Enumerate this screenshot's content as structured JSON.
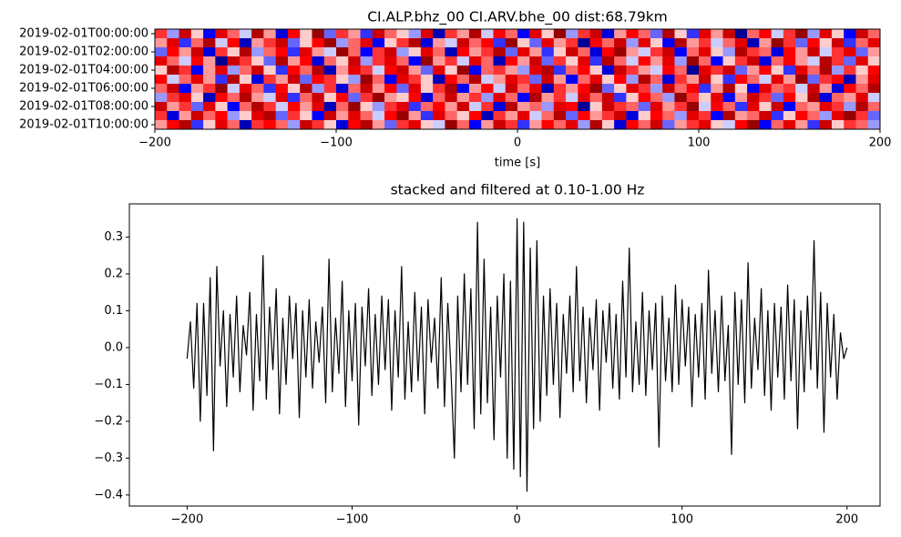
{
  "chart_data": [
    {
      "type": "heatmap",
      "title": "CI.ALP.bhz_00 CI.ARV.bhe_00  dist:68.79km",
      "x_label": "time [s]",
      "colormap": "seismic",
      "clim": [
        -1,
        1
      ],
      "xlim": [
        -200,
        200
      ],
      "xticks": [
        {
          "value": -200,
          "label": "−200"
        },
        {
          "value": -100,
          "label": "−100"
        },
        0,
        100,
        200
      ],
      "categories": [
        "2019-02-01T00:00:00",
        null,
        "2019-02-01T02:00:00",
        null,
        "2019-02-01T04:00:00",
        null,
        "2019-02-01T06:00:00",
        null,
        "2019-02-01T08:00:00",
        null,
        "2019-02-01T10:00:00"
      ],
      "values": [
        [
          0.4,
          -0.2,
          0.7,
          0.1,
          -0.5,
          0.6,
          0.3,
          -0.1,
          0.8,
          0.2,
          -0.6,
          0.5,
          0.1,
          0.9,
          -0.3,
          0.4,
          0.2,
          -0.4,
          0.7,
          0.3,
          0.1,
          -0.2,
          0.6,
          -0.7,
          0.4,
          0.2,
          0.8,
          -0.1,
          0.5,
          0.3,
          -0.5,
          0.6,
          0.1,
          0.9,
          -0.2,
          0.4,
          0.7,
          -0.6,
          0.2,
          0.5,
          0.3,
          -0.3,
          0.8,
          0.1,
          -0.4,
          0.6,
          0.2,
          0.7,
          -0.8,
          0.3,
          0.5,
          -0.1,
          0.4,
          0.9,
          -0.2,
          0.6,
          0.1,
          -0.5,
          0.7,
          0.3
        ],
        [
          0.2,
          0.6,
          -0.4,
          0.3,
          0.8,
          -0.1,
          0.5,
          -0.7,
          0.2,
          0.4,
          0.7,
          -0.3,
          0.1,
          0.5,
          0.9,
          -0.2,
          0.3,
          0.6,
          -0.5,
          0.1,
          0.4,
          0.8,
          -0.6,
          0.2,
          -0.1,
          0.7,
          0.3,
          0.5,
          -0.4,
          0.9,
          0.1,
          -0.3,
          0.6,
          0.2,
          0.4,
          -0.8,
          0.5,
          0.3,
          0.7,
          -0.2,
          0.6,
          0.1,
          -0.5,
          0.8,
          0.2,
          0.4,
          -0.1,
          0.3,
          0.6,
          -0.7,
          0.2,
          0.9,
          0.4,
          -0.3,
          0.5,
          0.1,
          0.7,
          -0.4,
          0.3,
          0.6
        ],
        [
          -0.3,
          0.5,
          0.2,
          0.7,
          -0.6,
          0.4,
          0.1,
          0.8,
          -0.2,
          0.3,
          0.5,
          -0.4,
          0.6,
          0.2,
          -0.1,
          0.9,
          0.3,
          -0.5,
          0.4,
          0.7,
          -0.2,
          0.1,
          0.6,
          0.3,
          -0.7,
          0.5,
          0.2,
          0.4,
          0.8,
          -0.3,
          0.6,
          0.2,
          -0.4,
          0.1,
          0.7,
          0.3,
          -0.6,
          0.5,
          0.9,
          0.2,
          -0.1,
          0.4,
          0.7,
          -0.5,
          0.3,
          0.6,
          0.1,
          -0.2,
          0.8,
          0.4,
          0.3,
          -0.6,
          0.5,
          0.2,
          0.7,
          -0.1,
          0.4,
          0.6,
          -0.3,
          0.2
        ],
        [
          0.6,
          0.3,
          -0.1,
          0.5,
          0.2,
          -0.8,
          0.7,
          0.4,
          0.1,
          -0.3,
          0.8,
          0.2,
          0.5,
          -0.6,
          0.3,
          0.1,
          0.7,
          -0.2,
          0.4,
          0.6,
          0.3,
          -0.5,
          0.9,
          0.2,
          0.4,
          -0.1,
          0.6,
          0.3,
          -0.7,
          0.5,
          0.2,
          0.7,
          -0.3,
          0.4,
          0.1,
          0.6,
          -0.4,
          0.8,
          0.3,
          -0.1,
          0.5,
          0.2,
          0.6,
          -0.2,
          0.9,
          0.3,
          -0.5,
          0.1,
          0.4,
          0.7,
          -0.6,
          0.3,
          0.5,
          0.2,
          -0.1,
          0.8,
          0.4,
          -0.3,
          0.6,
          0.1
        ],
        [
          0.1,
          0.8,
          0.4,
          -0.5,
          0.2,
          0.6,
          -0.2,
          0.3,
          0.7,
          0.1,
          -0.4,
          0.5,
          0.3,
          0.8,
          -0.7,
          0.2,
          0.6,
          0.4,
          -0.1,
          0.5,
          0.7,
          0.2,
          -0.3,
          0.6,
          0.1,
          0.9,
          -0.5,
          0.3,
          0.4,
          0.2,
          -0.2,
          0.6,
          0.8,
          -0.4,
          0.3,
          0.5,
          0.1,
          -0.6,
          0.7,
          0.4,
          0.2,
          -0.1,
          0.5,
          0.3,
          -0.8,
          0.6,
          0.4,
          0.7,
          -0.3,
          0.2,
          0.5,
          0.1,
          -0.4,
          0.6,
          0.3,
          0.8,
          -0.2,
          0.4,
          0.1,
          0.5
        ],
        [
          0.5,
          -0.1,
          0.3,
          0.6,
          0.2,
          -0.4,
          0.8,
          0.1,
          -0.6,
          0.4,
          0.2,
          0.7,
          -0.3,
          0.5,
          0.4,
          0.1,
          -0.2,
          0.9,
          0.3,
          -0.5,
          0.6,
          0.4,
          0.1,
          -0.7,
          0.5,
          0.3,
          0.8,
          -0.1,
          0.2,
          0.6,
          0.4,
          -0.3,
          0.7,
          0.2,
          -0.5,
          0.3,
          0.6,
          0.1,
          0.5,
          -0.2,
          0.8,
          0.3,
          -0.6,
          0.4,
          0.2,
          0.7,
          0.1,
          -0.4,
          0.5,
          0.3,
          -0.1,
          0.6,
          0.2,
          0.9,
          -0.3,
          0.4,
          0.5,
          -0.7,
          0.2,
          0.6
        ],
        [
          0.3,
          0.7,
          -0.5,
          0.2,
          0.4,
          0.9,
          -0.1,
          0.6,
          0.3,
          -0.4,
          0.5,
          0.1,
          0.8,
          -0.2,
          0.4,
          -0.6,
          0.3,
          0.7,
          0.2,
          0.5,
          -0.3,
          0.6,
          0.1,
          0.4,
          0.8,
          -0.5,
          0.2,
          0.5,
          -0.1,
          0.7,
          0.3,
          0.6,
          -0.7,
          0.4,
          0.2,
          0.5,
          0.9,
          -0.3,
          0.1,
          0.6,
          0.4,
          -0.2,
          0.7,
          0.3,
          0.5,
          -0.4,
          0.2,
          0.8,
          0.1,
          -0.5,
          0.6,
          0.3,
          0.4,
          -0.1,
          0.7,
          0.2,
          -0.6,
          0.5,
          0.3,
          0.8
        ],
        [
          -0.2,
          0.4,
          0.6,
          0.1,
          -0.7,
          0.5,
          0.3,
          0.8,
          0.2,
          -0.1,
          0.6,
          -0.4,
          0.3,
          0.7,
          0.1,
          0.5,
          -0.3,
          0.4,
          0.9,
          0.2,
          0.1,
          0.5,
          -0.6,
          0.3,
          0.7,
          0.2,
          0.4,
          -0.2,
          0.6,
          0.3,
          -0.5,
          0.8,
          0.2,
          0.4,
          -0.1,
          0.6,
          0.3,
          0.7,
          -0.4,
          0.1,
          0.5,
          0.3,
          -0.2,
          0.9,
          0.4,
          0.1,
          0.6,
          -0.5,
          0.2,
          0.7,
          0.4,
          -0.3,
          0.5,
          0.1,
          0.8,
          -0.6,
          0.3,
          0.2,
          0.6,
          -0.1
        ],
        [
          0.7,
          0.2,
          0.4,
          -0.3,
          0.6,
          0.1,
          -0.5,
          0.3,
          0.8,
          0.4,
          -0.1,
          0.5,
          0.2,
          0.6,
          -0.7,
          0.3,
          0.9,
          0.1,
          -0.2,
          0.4,
          0.6,
          -0.4,
          0.3,
          0.5,
          0.2,
          0.7,
          -0.1,
          0.4,
          -0.6,
          0.8,
          0.2,
          0.3,
          -0.2,
          0.6,
          0.5,
          -0.8,
          0.1,
          0.7,
          0.4,
          0.3,
          -0.3,
          0.6,
          0.2,
          0.4,
          0.9,
          -0.1,
          0.5,
          0.3,
          -0.4,
          0.6,
          0.1,
          0.7,
          -0.5,
          0.3,
          0.2,
          0.6,
          0.4,
          -0.2,
          0.8,
          0.3
        ],
        [
          0.4,
          -0.6,
          0.2,
          0.7,
          0.3,
          0.5,
          -0.2,
          0.1,
          0.6,
          0.8,
          -0.3,
          0.4,
          0.1,
          -0.5,
          0.7,
          0.2,
          0.6,
          0.3,
          -0.1,
          0.5,
          0.9,
          0.2,
          -0.4,
          0.6,
          0.3,
          0.1,
          0.5,
          -0.7,
          0.4,
          0.2,
          0.6,
          -0.1,
          0.3,
          0.8,
          -0.3,
          0.5,
          0.2,
          0.4,
          0.7,
          -0.6,
          0.1,
          0.5,
          0.3,
          -0.2,
          0.6,
          0.4,
          -0.5,
          0.8,
          0.2,
          0.3,
          0.7,
          -0.4,
          0.1,
          0.5,
          0.3,
          -0.2,
          0.6,
          0.9,
          0.4,
          -0.3
        ],
        [
          0.2,
          0.5,
          0.8,
          -0.4,
          0.1,
          0.6,
          0.3,
          -0.7,
          0.4,
          0.5,
          0.3,
          -0.2,
          0.7,
          0.4,
          0.1,
          -0.6,
          0.5,
          0.8,
          0.2,
          -0.3,
          0.4,
          0.6,
          0.1,
          -0.1,
          0.9,
          0.3,
          -0.5,
          0.2,
          0.7,
          0.4,
          -0.4,
          0.2,
          0.5,
          0.3,
          0.6,
          -0.2,
          0.8,
          0.1,
          -0.6,
          0.5,
          0.3,
          0.7,
          -0.3,
          0.2,
          0.4,
          0.6,
          0.1,
          -0.1,
          0.5,
          0.9,
          -0.5,
          0.3,
          0.6,
          0.2,
          -0.4,
          0.7,
          0.1,
          0.4,
          0.3,
          -0.2
        ]
      ]
    },
    {
      "type": "line",
      "title": "stacked and filtered at 0.10-1.00 Hz",
      "color": "#000000",
      "xlim": [
        -235,
        220
      ],
      "ylim": [
        -0.43,
        0.39
      ],
      "xticks": [
        {
          "value": -200,
          "label": "−200"
        },
        {
          "value": -100,
          "label": "−100"
        },
        0,
        100,
        200
      ],
      "yticks": [
        {
          "value": -0.4,
          "label": "−0.4"
        },
        {
          "value": -0.3,
          "label": "−0.3"
        },
        {
          "value": -0.2,
          "label": "−0.2"
        },
        {
          "value": -0.1,
          "label": "−0.1"
        },
        {
          "value": 0,
          "label": "0.0"
        },
        0.1,
        0.2,
        0.3
      ],
      "x": [
        -200,
        -198,
        -196,
        -194,
        -192,
        -190,
        -188,
        -186,
        -184,
        -182,
        -180,
        -178,
        -176,
        -174,
        -172,
        -170,
        -168,
        -166,
        -164,
        -162,
        -160,
        -158,
        -156,
        -154,
        -152,
        -150,
        -148,
        -146,
        -144,
        -142,
        -140,
        -138,
        -136,
        -134,
        -132,
        -130,
        -128,
        -126,
        -124,
        -122,
        -120,
        -118,
        -116,
        -114,
        -112,
        -110,
        -108,
        -106,
        -104,
        -102,
        -100,
        -98,
        -96,
        -94,
        -92,
        -90,
        -88,
        -86,
        -84,
        -82,
        -80,
        -78,
        -76,
        -74,
        -72,
        -70,
        -68,
        -66,
        -64,
        -62,
        -60,
        -58,
        -56,
        -54,
        -52,
        -50,
        -48,
        -46,
        -44,
        -42,
        -40,
        -38,
        -36,
        -34,
        -32,
        -30,
        -28,
        -26,
        -24,
        -22,
        -20,
        -18,
        -16,
        -14,
        -12,
        -10,
        -8,
        -6,
        -4,
        -2,
        0,
        2,
        4,
        6,
        8,
        10,
        12,
        14,
        16,
        18,
        20,
        22,
        24,
        26,
        28,
        30,
        32,
        34,
        36,
        38,
        40,
        42,
        44,
        46,
        48,
        50,
        52,
        54,
        56,
        58,
        60,
        62,
        64,
        66,
        68,
        70,
        72,
        74,
        76,
        78,
        80,
        82,
        84,
        86,
        88,
        90,
        92,
        94,
        96,
        98,
        100,
        102,
        104,
        106,
        108,
        110,
        112,
        114,
        116,
        118,
        120,
        122,
        124,
        126,
        128,
        130,
        132,
        134,
        136,
        138,
        140,
        142,
        144,
        146,
        148,
        150,
        152,
        154,
        156,
        158,
        160,
        162,
        164,
        166,
        168,
        170,
        172,
        174,
        176,
        178,
        180,
        182,
        184,
        186,
        188,
        190,
        192,
        194,
        196,
        198,
        200
      ],
      "values": [
        -0.03,
        0.07,
        -0.11,
        0.12,
        -0.2,
        0.12,
        -0.13,
        0.19,
        -0.28,
        0.22,
        -0.05,
        0.1,
        -0.16,
        0.09,
        -0.08,
        0.14,
        -0.12,
        0.06,
        -0.02,
        0.15,
        -0.17,
        0.09,
        -0.09,
        0.25,
        -0.14,
        0.11,
        -0.06,
        0.16,
        -0.18,
        0.08,
        -0.1,
        0.14,
        -0.03,
        0.12,
        -0.19,
        0.1,
        -0.08,
        0.13,
        -0.11,
        0.07,
        -0.04,
        0.11,
        -0.15,
        0.24,
        -0.12,
        0.08,
        -0.07,
        0.18,
        -0.16,
        0.1,
        -0.09,
        0.12,
        -0.21,
        0.11,
        -0.05,
        0.16,
        -0.13,
        0.09,
        -0.1,
        0.14,
        -0.06,
        0.13,
        -0.17,
        0.1,
        -0.08,
        0.22,
        -0.14,
        0.07,
        -0.12,
        0.15,
        -0.09,
        0.11,
        -0.18,
        0.13,
        -0.04,
        0.08,
        -0.11,
        0.19,
        -0.16,
        0.12,
        -0.07,
        -0.3,
        0.14,
        -0.12,
        0.2,
        -0.1,
        0.16,
        -0.22,
        0.34,
        -0.18,
        0.24,
        -0.15,
        0.11,
        -0.25,
        0.14,
        -0.08,
        0.2,
        -0.3,
        0.18,
        -0.33,
        0.35,
        -0.35,
        0.34,
        -0.39,
        0.27,
        -0.22,
        0.29,
        -0.2,
        0.14,
        -0.13,
        0.16,
        -0.1,
        0.12,
        -0.19,
        0.09,
        -0.07,
        0.14,
        -0.12,
        0.22,
        -0.09,
        0.11,
        -0.15,
        0.08,
        -0.06,
        0.13,
        -0.17,
        0.1,
        -0.04,
        0.12,
        -0.11,
        0.09,
        -0.14,
        0.18,
        -0.08,
        0.27,
        -0.12,
        0.07,
        -0.1,
        0.15,
        -0.13,
        0.1,
        -0.06,
        0.12,
        -0.27,
        0.14,
        -0.09,
        0.08,
        -0.12,
        0.17,
        -0.1,
        0.13,
        -0.05,
        0.11,
        -0.16,
        0.09,
        -0.08,
        0.12,
        -0.14,
        0.21,
        -0.07,
        0.1,
        -0.12,
        0.14,
        -0.09,
        0.06,
        -0.29,
        0.15,
        -0.1,
        0.13,
        -0.15,
        0.23,
        -0.11,
        0.08,
        -0.06,
        0.16,
        -0.13,
        0.1,
        -0.17,
        0.12,
        -0.08,
        0.11,
        -0.14,
        0.17,
        -0.09,
        0.13,
        -0.22,
        0.1,
        -0.12,
        0.14,
        -0.06,
        0.29,
        -0.11,
        0.15,
        -0.23,
        0.12,
        -0.08,
        0.09,
        -0.14,
        0.04,
        -0.03,
        0.0
      ]
    }
  ]
}
